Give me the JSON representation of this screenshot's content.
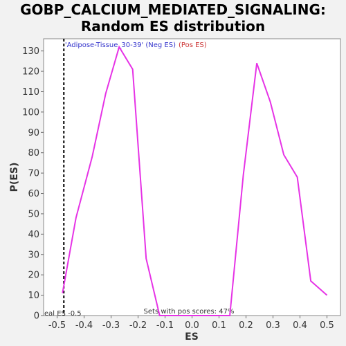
{
  "chart_data": {
    "type": "line",
    "title": "GOBP_CALCIUM_MEDIATED_SIGNALING:",
    "subtitle": "Random ES distribution",
    "xlabel": "ES",
    "ylabel": "P(ES)",
    "xlim": [
      -0.55,
      0.55
    ],
    "ylim": [
      0,
      136
    ],
    "x_ticks": [
      -0.5,
      -0.4,
      -0.3,
      -0.2,
      -0.1,
      0.0,
      0.1,
      0.2,
      0.3,
      0.4,
      0.5
    ],
    "x_tick_labels": [
      "-0.5",
      "-0.4",
      "-0.3",
      "-0.2",
      "-0.1",
      "0.0",
      "0.1",
      "0.2",
      "0.3",
      "0.4",
      "0.5"
    ],
    "y_ticks": [
      0,
      10,
      20,
      30,
      40,
      50,
      60,
      70,
      80,
      90,
      100,
      110,
      120,
      130
    ],
    "grid": false,
    "legend": {
      "neg_label": "'Adipose-Tissue_30-39' (Neg ES)",
      "pos_label": "(Pos ES)",
      "neg_color": "#3333cc",
      "pos_color": "#cc3333"
    },
    "annotations": {
      "real_es_label": "eal ES -0.5",
      "real_es_value": -0.475,
      "pos_scores_text": "Sets with pos scores: 47%"
    },
    "series_color": "#e633e6",
    "series": [
      {
        "x": [
          -0.48,
          -0.43,
          -0.37,
          -0.32,
          -0.27,
          -0.22,
          -0.17,
          -0.12,
          -0.07,
          -0.02,
          0.03,
          0.08,
          0.14,
          0.19,
          0.24,
          0.29,
          0.34,
          0.39,
          0.44,
          0.5
        ],
        "y": [
          11,
          48,
          78,
          109,
          132,
          121,
          28,
          0,
          0,
          0,
          0,
          0,
          0,
          69,
          124,
          105,
          79,
          68,
          17,
          10
        ]
      }
    ]
  }
}
